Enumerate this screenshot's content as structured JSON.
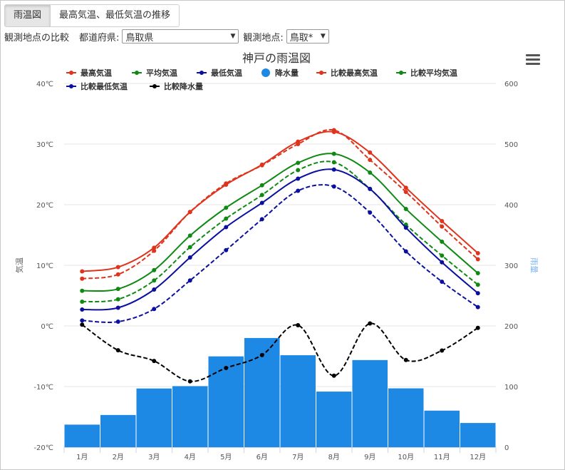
{
  "tabs": [
    {
      "label": "雨温図",
      "active": true
    },
    {
      "label": "最高気温、最低気温の推移",
      "active": false
    }
  ],
  "controls": {
    "compare_label": "観測地点の比較",
    "pref_label": "都道府県:",
    "pref_value": "鳥取県",
    "station_label": "観測地点:",
    "station_value": "鳥取*"
  },
  "colors": {
    "max": "#e0331c",
    "avg": "#0e8a12",
    "min": "#0b0fa0",
    "rain": "#1e88e5",
    "cmp_rain": "#000000",
    "grid": "#e6e6e6"
  },
  "chart_data": {
    "type": "line",
    "title": "神戸の雨温図",
    "ylabel_left": "気温",
    "ylabel_right": "雨量",
    "ylim_left": [
      -20,
      40
    ],
    "ylim_right": [
      0,
      600
    ],
    "yticks_left": [
      "40℃",
      "30℃",
      "20℃",
      "10℃",
      "0℃",
      "-10℃",
      "-20℃"
    ],
    "yticks_right": [
      "600",
      "500",
      "400",
      "300",
      "200",
      "100",
      "0"
    ],
    "categories": [
      "1月",
      "2月",
      "3月",
      "4月",
      "5月",
      "6月",
      "7月",
      "8月",
      "9月",
      "10月",
      "11月",
      "12月"
    ],
    "legend_placement": "top",
    "series": [
      {
        "name": "最高気温",
        "kind": "line",
        "axis": "left",
        "color": "#e0331c",
        "dashed": false,
        "values": [
          9.0,
          9.7,
          12.9,
          18.8,
          23.3,
          26.6,
          30.4,
          32.0,
          28.6,
          22.8,
          17.3,
          12.0
        ]
      },
      {
        "name": "平均気温",
        "kind": "line",
        "axis": "left",
        "color": "#0e8a12",
        "dashed": false,
        "values": [
          5.8,
          6.1,
          9.2,
          14.9,
          19.5,
          23.2,
          26.9,
          28.4,
          25.3,
          19.3,
          13.9,
          8.7
        ]
      },
      {
        "name": "最低気温",
        "kind": "line",
        "axis": "left",
        "color": "#0b0fa0",
        "dashed": false,
        "values": [
          2.7,
          3.0,
          6.0,
          11.3,
          16.3,
          20.3,
          24.3,
          25.8,
          22.6,
          16.2,
          10.5,
          5.4
        ]
      },
      {
        "name": "降水量",
        "kind": "bar",
        "axis": "right",
        "color": "#1e88e5",
        "values": [
          37.2,
          53.1,
          96.8,
          100.7,
          149.8,
          180.1,
          151.7,
          91.7,
          143.7,
          97.0,
          60.3,
          39.9
        ]
      },
      {
        "name": "比較最高気温",
        "kind": "line",
        "axis": "left",
        "color": "#e0331c",
        "dashed": true,
        "values": [
          7.8,
          8.5,
          12.4,
          18.8,
          23.5,
          26.5,
          30.0,
          32.3,
          27.4,
          22.1,
          16.4,
          11.0
        ]
      },
      {
        "name": "比較平均気温",
        "kind": "line",
        "axis": "left",
        "color": "#0e8a12",
        "dashed": true,
        "values": [
          4.0,
          4.4,
          7.5,
          13.0,
          17.7,
          21.6,
          25.7,
          27.0,
          22.6,
          16.7,
          11.6,
          6.8
        ]
      },
      {
        "name": "比較最低気温",
        "kind": "line",
        "axis": "left",
        "color": "#0b0fa0",
        "dashed": true,
        "values": [
          0.9,
          0.7,
          2.8,
          7.5,
          12.5,
          17.6,
          22.3,
          23.0,
          18.7,
          12.3,
          7.3,
          3.1
        ]
      },
      {
        "name": "比較降水量",
        "kind": "line",
        "axis": "right",
        "color": "#000000",
        "dashed": true,
        "values": [
          202.0,
          159.8,
          142.2,
          108.6,
          130.6,
          151.9,
          201.2,
          117.9,
          204.1,
          143.8,
          159.4,
          196.8
        ]
      }
    ]
  }
}
